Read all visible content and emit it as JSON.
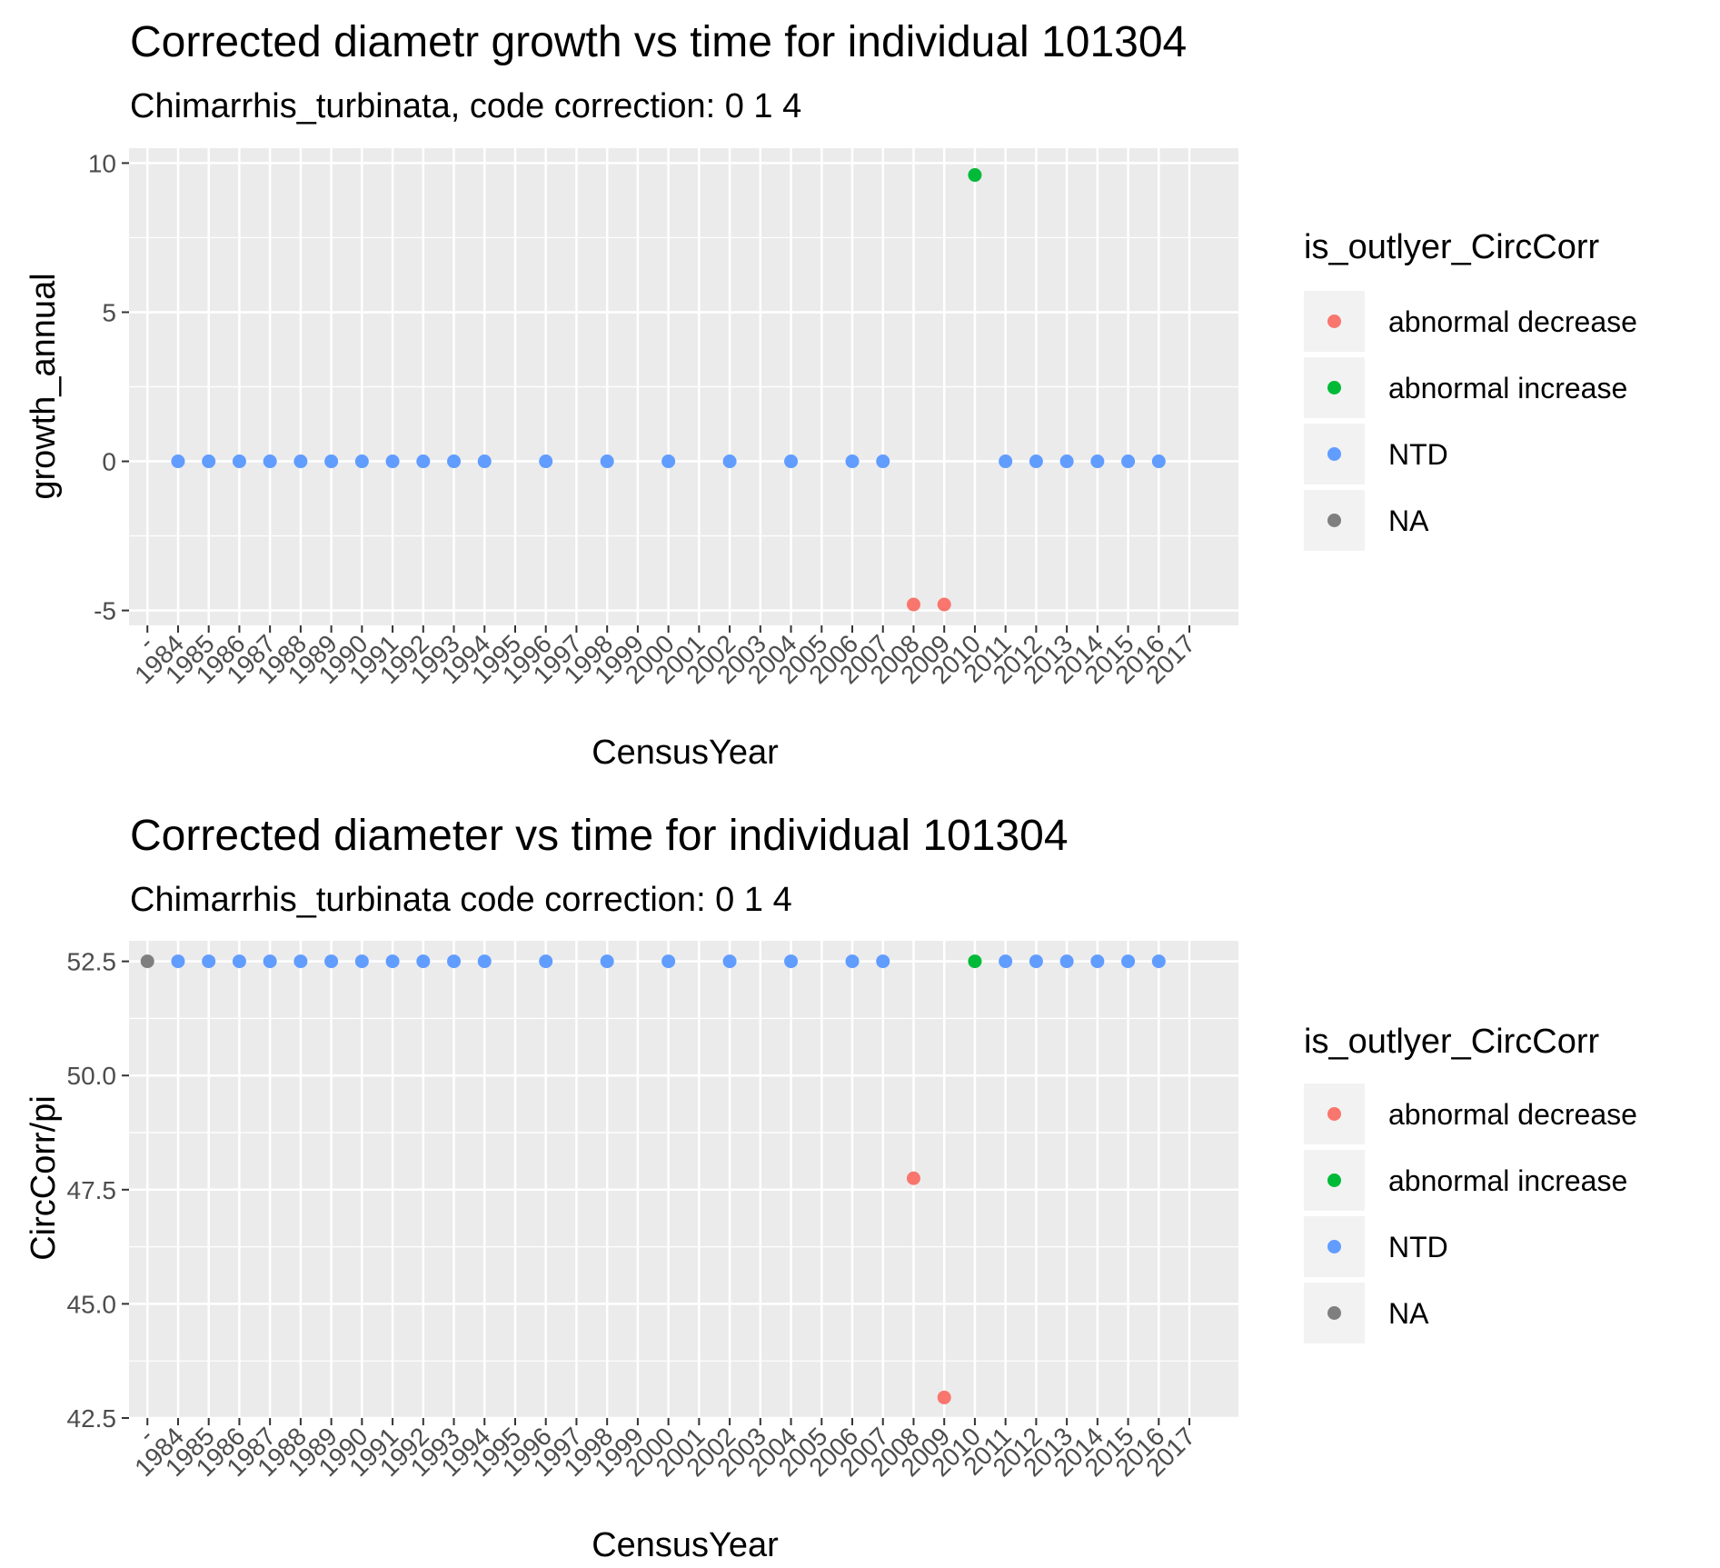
{
  "chart_data": [
    {
      "type": "scatter",
      "title": "Corrected diametr growth vs time for individual 101304",
      "subtitle": "Chimarrhis_turbinata, code correction: 0 1 4",
      "xlabel": "CensusYear",
      "ylabel": "growth_annual",
      "x_categories": [
        "-",
        "1984",
        "1985",
        "1986",
        "1987",
        "1988",
        "1989",
        "1990",
        "1991",
        "1992",
        "1993",
        "1994",
        "1995",
        "1996",
        "1997",
        "1998",
        "1999",
        "2000",
        "2001",
        "2002",
        "2003",
        "2004",
        "2005",
        "2006",
        "2007",
        "2008",
        "2009",
        "2010",
        "2011",
        "2012",
        "2013",
        "2014",
        "2015",
        "2016",
        "2017"
      ],
      "ylim": [
        -5.5,
        10.5
      ],
      "y_ticks": [
        -5,
        0,
        5,
        10
      ],
      "y_tick_labels": [
        "-5",
        "0",
        "5",
        "10"
      ],
      "grid": true,
      "legend": {
        "title": "is_outlyer_CircCorr",
        "position": "right",
        "entries": [
          {
            "label": "abnormal decrease",
            "color": "#F8766D"
          },
          {
            "label": "abnormal increase",
            "color": "#00BA38"
          },
          {
            "label": "NTD",
            "color": "#619CFF"
          },
          {
            "label": "NA",
            "color": "#7F7F7F"
          }
        ]
      },
      "points": [
        {
          "x": "1984",
          "y": 0,
          "group": "NTD"
        },
        {
          "x": "1985",
          "y": 0,
          "group": "NTD"
        },
        {
          "x": "1986",
          "y": 0,
          "group": "NTD"
        },
        {
          "x": "1987",
          "y": 0,
          "group": "NTD"
        },
        {
          "x": "1988",
          "y": 0,
          "group": "NTD"
        },
        {
          "x": "1989",
          "y": 0,
          "group": "NTD"
        },
        {
          "x": "1990",
          "y": 0,
          "group": "NTD"
        },
        {
          "x": "1991",
          "y": 0,
          "group": "NTD"
        },
        {
          "x": "1992",
          "y": 0,
          "group": "NTD"
        },
        {
          "x": "1993",
          "y": 0,
          "group": "NTD"
        },
        {
          "x": "1994",
          "y": 0,
          "group": "NTD"
        },
        {
          "x": "1996",
          "y": 0,
          "group": "NTD"
        },
        {
          "x": "1998",
          "y": 0,
          "group": "NTD"
        },
        {
          "x": "2000",
          "y": 0,
          "group": "NTD"
        },
        {
          "x": "2002",
          "y": 0,
          "group": "NTD"
        },
        {
          "x": "2004",
          "y": 0,
          "group": "NTD"
        },
        {
          "x": "2006",
          "y": 0,
          "group": "NTD"
        },
        {
          "x": "2007",
          "y": 0,
          "group": "NTD"
        },
        {
          "x": "2008",
          "y": -4.8,
          "group": "abnormal decrease"
        },
        {
          "x": "2009",
          "y": -4.8,
          "group": "abnormal decrease"
        },
        {
          "x": "2010",
          "y": 9.6,
          "group": "abnormal increase"
        },
        {
          "x": "2011",
          "y": 0,
          "group": "NTD"
        },
        {
          "x": "2012",
          "y": 0,
          "group": "NTD"
        },
        {
          "x": "2013",
          "y": 0,
          "group": "NTD"
        },
        {
          "x": "2014",
          "y": 0,
          "group": "NTD"
        },
        {
          "x": "2015",
          "y": 0,
          "group": "NTD"
        },
        {
          "x": "2016",
          "y": 0,
          "group": "NTD"
        }
      ]
    },
    {
      "type": "scatter",
      "title": "Corrected diameter vs time for individual 101304",
      "subtitle": "Chimarrhis_turbinata code correction: 0 1 4",
      "xlabel": "CensusYear",
      "ylabel": "CircCorr/pi",
      "x_categories": [
        "-",
        "1984",
        "1985",
        "1986",
        "1987",
        "1988",
        "1989",
        "1990",
        "1991",
        "1992",
        "1993",
        "1994",
        "1995",
        "1996",
        "1997",
        "1998",
        "1999",
        "2000",
        "2001",
        "2002",
        "2003",
        "2004",
        "2005",
        "2006",
        "2007",
        "2008",
        "2009",
        "2010",
        "2011",
        "2012",
        "2013",
        "2014",
        "2015",
        "2016",
        "2017"
      ],
      "ylim": [
        42.5,
        52.95
      ],
      "y_ticks": [
        42.5,
        45.0,
        47.5,
        50.0,
        52.5
      ],
      "y_tick_labels": [
        "42.5",
        "45.0",
        "47.5",
        "50.0",
        "52.5"
      ],
      "grid": true,
      "legend": {
        "title": "is_outlyer_CircCorr",
        "position": "right",
        "entries": [
          {
            "label": "abnormal decrease",
            "color": "#F8766D"
          },
          {
            "label": "abnormal increase",
            "color": "#00BA38"
          },
          {
            "label": "NTD",
            "color": "#619CFF"
          },
          {
            "label": "NA",
            "color": "#7F7F7F"
          }
        ]
      },
      "points": [
        {
          "x": "-",
          "y": 52.5,
          "group": "NA"
        },
        {
          "x": "1984",
          "y": 52.5,
          "group": "NTD"
        },
        {
          "x": "1985",
          "y": 52.5,
          "group": "NTD"
        },
        {
          "x": "1986",
          "y": 52.5,
          "group": "NTD"
        },
        {
          "x": "1987",
          "y": 52.5,
          "group": "NTD"
        },
        {
          "x": "1988",
          "y": 52.5,
          "group": "NTD"
        },
        {
          "x": "1989",
          "y": 52.5,
          "group": "NTD"
        },
        {
          "x": "1990",
          "y": 52.5,
          "group": "NTD"
        },
        {
          "x": "1991",
          "y": 52.5,
          "group": "NTD"
        },
        {
          "x": "1992",
          "y": 52.5,
          "group": "NTD"
        },
        {
          "x": "1993",
          "y": 52.5,
          "group": "NTD"
        },
        {
          "x": "1994",
          "y": 52.5,
          "group": "NTD"
        },
        {
          "x": "1996",
          "y": 52.5,
          "group": "NTD"
        },
        {
          "x": "1998",
          "y": 52.5,
          "group": "NTD"
        },
        {
          "x": "2000",
          "y": 52.5,
          "group": "NTD"
        },
        {
          "x": "2002",
          "y": 52.5,
          "group": "NTD"
        },
        {
          "x": "2004",
          "y": 52.5,
          "group": "NTD"
        },
        {
          "x": "2006",
          "y": 52.5,
          "group": "NTD"
        },
        {
          "x": "2007",
          "y": 52.5,
          "group": "NTD"
        },
        {
          "x": "2008",
          "y": 47.75,
          "group": "abnormal decrease"
        },
        {
          "x": "2009",
          "y": 42.95,
          "group": "abnormal decrease"
        },
        {
          "x": "2010",
          "y": 52.5,
          "group": "abnormal increase"
        },
        {
          "x": "2011",
          "y": 52.5,
          "group": "NTD"
        },
        {
          "x": "2012",
          "y": 52.5,
          "group": "NTD"
        },
        {
          "x": "2013",
          "y": 52.5,
          "group": "NTD"
        },
        {
          "x": "2014",
          "y": 52.5,
          "group": "NTD"
        },
        {
          "x": "2015",
          "y": 52.5,
          "group": "NTD"
        },
        {
          "x": "2016",
          "y": 52.5,
          "group": "NTD"
        }
      ]
    }
  ]
}
